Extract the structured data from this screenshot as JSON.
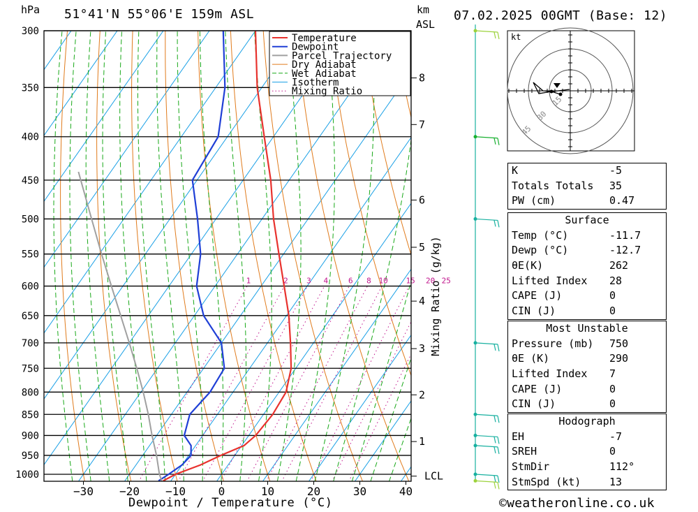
{
  "header": {
    "location": "51°41'N 55°06'E 159m ASL",
    "date": "07.02.2025 00GMT (Base: 12)",
    "pressure_unit": "hPa",
    "height_unit": "km",
    "height_ref": "ASL"
  },
  "footer": {
    "xlabel": "Dewpoint / Temperature (°C)",
    "mixing_label": "Mixing Ratio (g/kg)",
    "credit": "©weatheronline.co.uk"
  },
  "legend": [
    "Temperature",
    "Dewpoint",
    "Parcel Trajectory",
    "Dry Adiabat",
    "Wet Adiabat",
    "Isotherm",
    "Mixing Ratio"
  ],
  "colors": {
    "temperature": "#e8322e",
    "dewpoint": "#1f3fd6",
    "parcel": "#a0a0a0",
    "dry_adiabat": "#e07b1c",
    "wet_adiabat": "#18a818",
    "isotherm": "#1aa0e6",
    "mixing_ratio": "#c0148c",
    "wind": "#18b0a0"
  },
  "hodograph": {
    "unit": "kt",
    "ring_labels": [
      "15",
      "30",
      "45"
    ]
  },
  "indices": {
    "top": [
      {
        "k": "K",
        "v": "-5"
      },
      {
        "k": "Totals Totals",
        "v": "35"
      },
      {
        "k": "PW (cm)",
        "v": "0.47"
      }
    ],
    "surface_title": "Surface",
    "surface": [
      {
        "k": "Temp (°C)",
        "v": "-11.7"
      },
      {
        "k": "Dewp (°C)",
        "v": "-12.7"
      },
      {
        "k": "θE(K)",
        "v": "262"
      },
      {
        "k": "Lifted Index",
        "v": "28"
      },
      {
        "k": "CAPE (J)",
        "v": "0"
      },
      {
        "k": "CIN (J)",
        "v": "0"
      }
    ],
    "mu_title": "Most Unstable",
    "mu": [
      {
        "k": "Pressure (mb)",
        "v": "750"
      },
      {
        "k": "θE (K)",
        "v": "290"
      },
      {
        "k": "Lifted Index",
        "v": "7"
      },
      {
        "k": "CAPE (J)",
        "v": "0"
      },
      {
        "k": "CIN (J)",
        "v": "0"
      }
    ],
    "hodo_title": "Hodograph",
    "hodo": [
      {
        "k": "EH",
        "v": "-7"
      },
      {
        "k": "SREH",
        "v": "0"
      },
      {
        "k": "StmDir",
        "v": "112°"
      },
      {
        "k": "StmSpd (kt)",
        "v": "13"
      }
    ]
  },
  "chart_data": {
    "type": "line",
    "title": "51°41'N 55°06'E 159m ASL",
    "xlabel": "Dewpoint / Temperature (°C)",
    "ylabel": "hPa",
    "xlim": [
      -40,
      40
    ],
    "ylim": [
      1020,
      300
    ],
    "x_ticks": [
      -30,
      -20,
      -10,
      0,
      10,
      20,
      30,
      40
    ],
    "y_ticks": [
      300,
      350,
      400,
      450,
      500,
      550,
      600,
      650,
      700,
      750,
      800,
      850,
      900,
      950,
      1000
    ],
    "km_ticks": [
      {
        "p": 341,
        "label": "8"
      },
      {
        "p": 387,
        "label": "7"
      },
      {
        "p": 475,
        "label": "6"
      },
      {
        "p": 540,
        "label": "5"
      },
      {
        "p": 625,
        "label": "4"
      },
      {
        "p": 711,
        "label": "3"
      },
      {
        "p": 806,
        "label": "2"
      },
      {
        "p": 915,
        "label": "1"
      },
      {
        "p": 1005,
        "label": "LCL"
      }
    ],
    "mixing_ratio_labels": [
      "1",
      "2",
      "3",
      "4",
      "6",
      "8",
      "10",
      "15",
      "20",
      "25"
    ],
    "series": [
      {
        "name": "Temperature",
        "points": [
          [
            1018,
            -11.7
          ],
          [
            1000,
            -10.0
          ],
          [
            975,
            -6.0
          ],
          [
            950,
            -3.0
          ],
          [
            925,
            0.5
          ],
          [
            900,
            1.5
          ],
          [
            850,
            2.0
          ],
          [
            800,
            1.5
          ],
          [
            750,
            -1.0
          ],
          [
            700,
            -5.0
          ],
          [
            650,
            -9.5
          ],
          [
            600,
            -15.0
          ],
          [
            550,
            -21.0
          ],
          [
            500,
            -27.5
          ],
          [
            450,
            -34.0
          ],
          [
            400,
            -42.0
          ],
          [
            350,
            -51.0
          ],
          [
            300,
            -60.0
          ]
        ]
      },
      {
        "name": "Dewpoint",
        "points": [
          [
            1018,
            -12.7
          ],
          [
            1000,
            -11.5
          ],
          [
            975,
            -10.0
          ],
          [
            950,
            -9.5
          ],
          [
            925,
            -11.0
          ],
          [
            900,
            -14.0
          ],
          [
            850,
            -16.0
          ],
          [
            800,
            -15.0
          ],
          [
            750,
            -15.5
          ],
          [
            700,
            -20.0
          ],
          [
            650,
            -28.0
          ],
          [
            600,
            -34.0
          ],
          [
            550,
            -38.0
          ],
          [
            500,
            -44.0
          ],
          [
            450,
            -51.0
          ],
          [
            400,
            -52.0
          ],
          [
            350,
            -58.0
          ],
          [
            300,
            -67.0
          ]
        ]
      },
      {
        "name": "Parcel Trajectory",
        "points": [
          [
            1018,
            -12.0
          ],
          [
            1000,
            -13.5
          ],
          [
            950,
            -17.0
          ],
          [
            900,
            -21.0
          ],
          [
            850,
            -25.0
          ],
          [
            800,
            -29.5
          ],
          [
            750,
            -34.5
          ],
          [
            700,
            -40.0
          ],
          [
            650,
            -46.0
          ],
          [
            600,
            -52.5
          ],
          [
            550,
            -59.5
          ],
          [
            500,
            -67.0
          ],
          [
            440,
            -77.0
          ]
        ]
      }
    ],
    "wind_levels_hpa": [
      300,
      400,
      500,
      700,
      850,
      900,
      925,
      1000,
      1018
    ]
  }
}
